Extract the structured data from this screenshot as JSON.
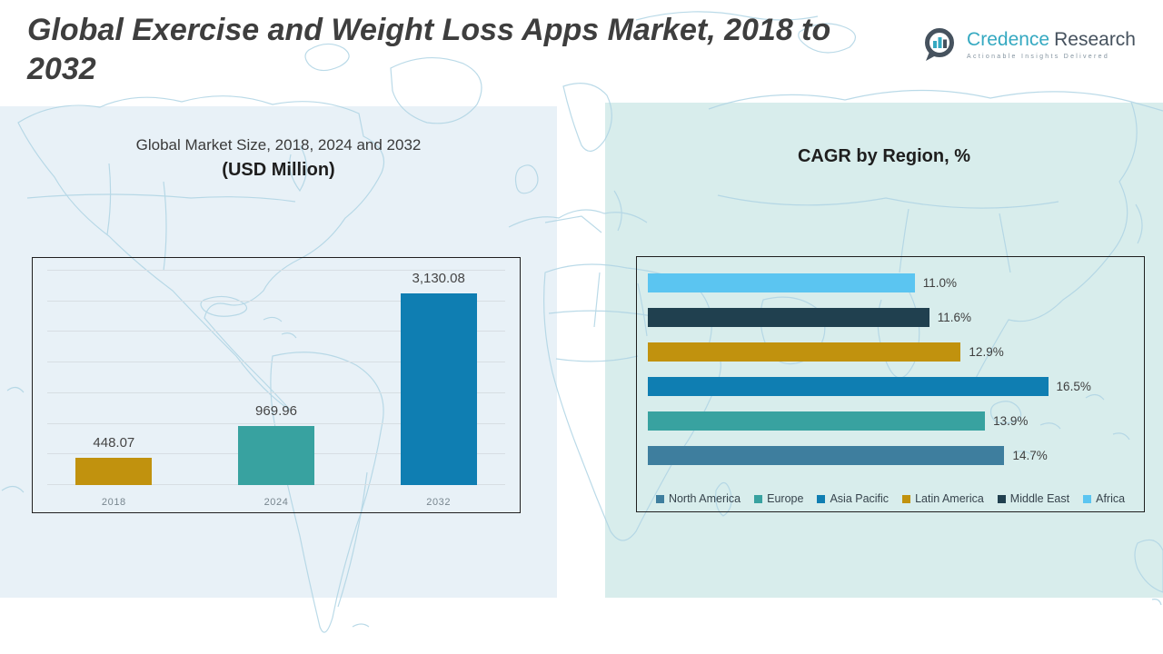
{
  "header": {
    "title_line1": "Global Exercise and Weight Loss Apps Market, 2018 to",
    "title_line2": "2032",
    "logo": {
      "brand_primary": "Credence",
      "brand_secondary": "Research",
      "tagline": "Actionable Insights Delivered",
      "icon": "bar-chart-speech-bubble-icon"
    }
  },
  "left_panel": {
    "title_line1": "Global Market Size, 2018, 2024 and 2032",
    "title_line2": "(USD Million)"
  },
  "right_panel": {
    "title": "CAGR by Region, %"
  },
  "colors": {
    "left_panel_bg": "#E8F1F7",
    "right_panel_bg": "#D8EDEC",
    "map_outline": "#AFD4E4",
    "chart_border": "#1F1F1F",
    "gridline": "#D7DEE3",
    "gold": "#C1920E",
    "teal": "#38A2A0",
    "cerulean": "#0F7EB2",
    "steel_blue": "#3E7E9E",
    "dark_navy": "#20404F",
    "sky_blue": "#5BC5F1",
    "brand_teal": "#35A9C1",
    "brand_slate": "#46525E"
  },
  "chart_data": [
    {
      "type": "bar",
      "title": "Global Market Size, 2018, 2024 and 2032 (USD Million)",
      "categories": [
        "2018",
        "2024",
        "2032"
      ],
      "values": [
        448.07,
        969.96,
        3130.08
      ],
      "value_labels": [
        "448.07",
        "969.96",
        "3,130.08"
      ],
      "bar_colors": [
        "#C1920E",
        "#38A2A0",
        "#0F7EB2"
      ],
      "xlabel": "",
      "ylabel": "USD Million",
      "ylim": [
        0,
        3500
      ],
      "grid_step": 500,
      "grid": true,
      "legend_position": "none"
    },
    {
      "type": "bar-horizontal",
      "title": "CAGR by Region, %",
      "categories": [
        "Africa",
        "Middle East",
        "Latin America",
        "Asia Pacific",
        "Europe",
        "North America"
      ],
      "values": [
        11.0,
        11.6,
        12.9,
        16.5,
        13.9,
        14.7
      ],
      "value_labels": [
        "11.0%",
        "11.6%",
        "12.9%",
        "16.5%",
        "13.9%",
        "14.7%"
      ],
      "bar_colors": [
        "#5BC5F1",
        "#20404F",
        "#C1920E",
        "#0F7EB2",
        "#38A2A0",
        "#3E7E9E"
      ],
      "xlabel": "CAGR %",
      "ylabel": "",
      "xlim": [
        0,
        20
      ],
      "grid": false,
      "legend_position": "bottom",
      "legend": [
        {
          "label": "North America",
          "color": "#3E7E9E"
        },
        {
          "label": "Europe",
          "color": "#38A2A0"
        },
        {
          "label": "Asia Pacific",
          "color": "#0F7EB2"
        },
        {
          "label": "Latin America",
          "color": "#C1920E"
        },
        {
          "label": "Middle East",
          "color": "#20404F"
        },
        {
          "label": "Africa",
          "color": "#5BC5F1"
        }
      ]
    }
  ]
}
